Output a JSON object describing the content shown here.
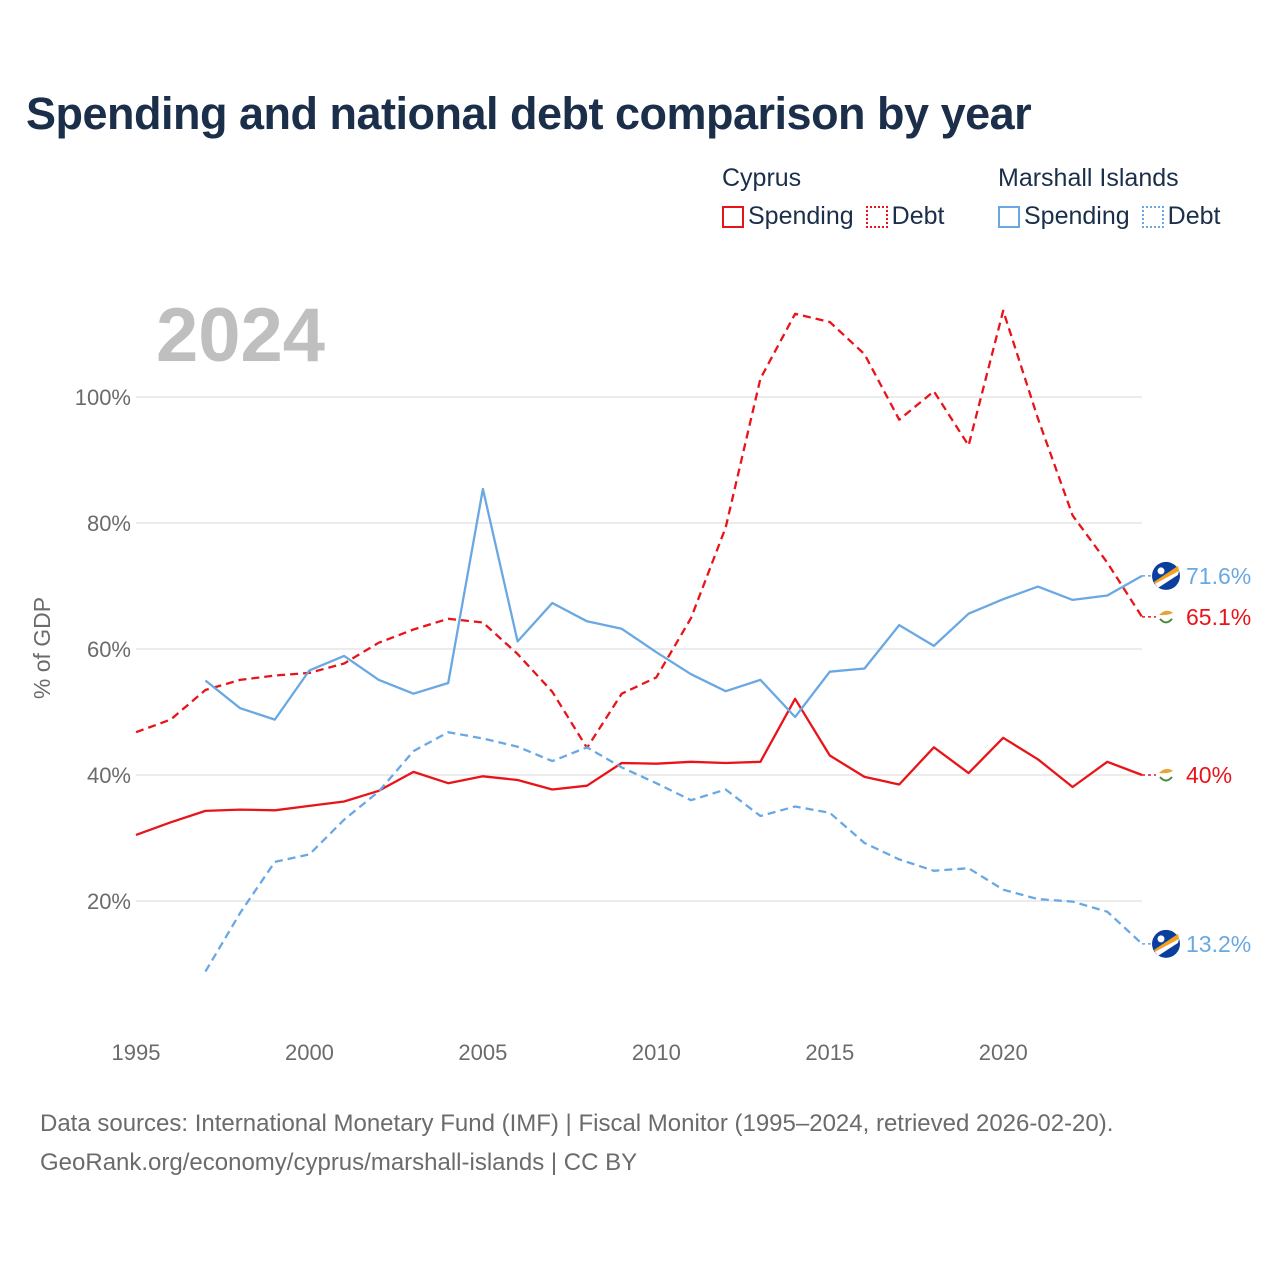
{
  "title": "Spending and national debt comparison by year",
  "legend": {
    "groups": [
      {
        "name": "Cyprus",
        "color": "#e8141a",
        "items": [
          {
            "label": "Spending",
            "style": "solid"
          },
          {
            "label": "Debt",
            "style": "dotted"
          }
        ]
      },
      {
        "name": "Marshall Islands",
        "color": "#6aa8e4",
        "items": [
          {
            "label": "Spending",
            "style": "solid"
          },
          {
            "label": "Debt",
            "style": "dotted"
          }
        ]
      }
    ]
  },
  "footer": {
    "line1": "Data sources: International Monetary Fund (IMF) | Fiscal Monitor (1995–2024, retrieved 2026-02-20).",
    "line2": "GeoRank.org/economy/cyprus/marshall-islands | CC BY"
  },
  "chart_data": {
    "type": "line",
    "year_label": "2024",
    "ylabel": "% of GDP",
    "xlim": [
      1995,
      2024
    ],
    "ylim": [
      0,
      120
    ],
    "x_ticks": [
      1995,
      2000,
      2005,
      2010,
      2015,
      2020
    ],
    "x_tick_labels": [
      "1995",
      "2000",
      "2005",
      "2010",
      "2015",
      "2020"
    ],
    "y_ticks": [
      20,
      40,
      60,
      80,
      100
    ],
    "y_tick_labels": [
      "20%",
      "40%",
      "60%",
      "80%",
      "100%"
    ],
    "series": [
      {
        "name": "Cyprus Spending",
        "country": "Cyprus",
        "metric": "Spending",
        "color": "#e8141a",
        "dashed": false,
        "start": 1995,
        "values": [
          30.5,
          32.5,
          34.3,
          34.5,
          34.4,
          35.1,
          35.8,
          37.5,
          40.5,
          38.7,
          39.8,
          39.2,
          37.7,
          38.3,
          41.9,
          41.8,
          42.1,
          41.9,
          42.1,
          52.1,
          43.1,
          39.7,
          38.5,
          44.4,
          40.3,
          45.9,
          42.5,
          38.1,
          42.1,
          40.0
        ],
        "end_label": "40%"
      },
      {
        "name": "Cyprus Debt",
        "country": "Cyprus",
        "metric": "Debt",
        "color": "#e8141a",
        "dashed": true,
        "start": 1995,
        "values": [
          46.8,
          48.8,
          53.5,
          55.1,
          55.8,
          56.2,
          57.7,
          61.0,
          63.1,
          64.8,
          64.2,
          59.2,
          53.2,
          44.3,
          52.9,
          55.5,
          64.9,
          79.3,
          102.9,
          113.2,
          111.9,
          106.8,
          96.4,
          100.9,
          92.3,
          113.7,
          96.6,
          81.2,
          73.7,
          65.1
        ],
        "end_label": "65.1%"
      },
      {
        "name": "Marshall Islands Spending",
        "country": "Marshall Islands",
        "metric": "Spending",
        "color": "#6aa8e4",
        "dashed": false,
        "start": 1997,
        "values": [
          55.0,
          50.6,
          48.8,
          56.6,
          58.9,
          55.1,
          52.9,
          54.6,
          85.4,
          61.2,
          67.3,
          64.4,
          63.2,
          59.5,
          56.0,
          53.3,
          55.1,
          49.2,
          56.4,
          56.9,
          63.8,
          60.5,
          65.6,
          67.9,
          69.9,
          67.8,
          68.5,
          71.6
        ],
        "end_label": "71.6%"
      },
      {
        "name": "Marshall Islands Debt",
        "country": "Marshall Islands",
        "metric": "Debt",
        "color": "#6aa8e4",
        "dashed": true,
        "start": 1997,
        "values": [
          8.8,
          18.1,
          26.2,
          27.4,
          32.9,
          37.4,
          43.8,
          46.8,
          45.8,
          44.5,
          42.2,
          44.4,
          41.2,
          38.7,
          36.0,
          37.7,
          33.5,
          35.0,
          34.0,
          29.2,
          26.6,
          24.8,
          25.2,
          21.8,
          20.3,
          19.9,
          18.3,
          13.2
        ],
        "end_label": "13.2%"
      }
    ]
  }
}
